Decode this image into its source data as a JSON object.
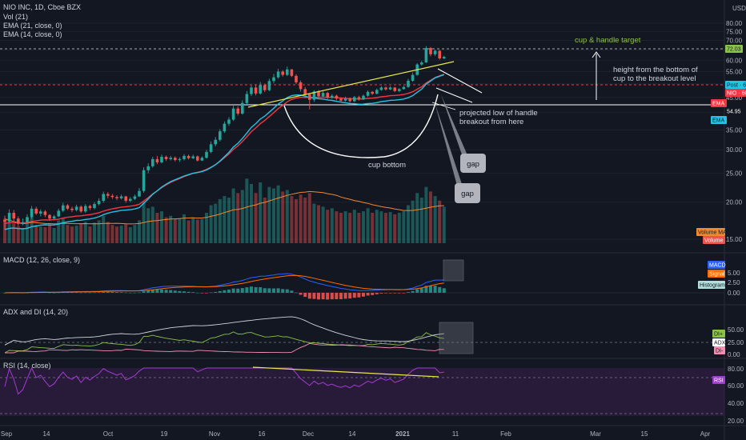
{
  "header": {
    "symbol_line": "NIO INC, 1D, Cboe BZX",
    "vol_label": "Vol (21)",
    "ema21_label": "EMA (21, close, 0)",
    "ema14_label": "EMA (14, close, 0)",
    "currency": "USD"
  },
  "colors": {
    "background": "#131722",
    "up": "#26a69a",
    "down": "#ef5350",
    "ema21": "#f23645",
    "ema14": "#22c4e6",
    "trend": "#e8e84a",
    "volume_ma": "#f0892f",
    "macd": "#2962ff",
    "signal": "#ff6d00",
    "adx": "#ffffff",
    "rsi": "#a33bd1"
  },
  "price_axis": {
    "ticks": [
      "80.00",
      "75.00",
      "70.00",
      "65.00",
      "60.00",
      "55.00",
      "50.00",
      "45.00",
      "40.00",
      "35.00",
      "30.00",
      "25.00",
      "20.00",
      "15.00"
    ]
  },
  "tags": {
    "target": "72.03",
    "post": "Post · 61.03",
    "nio": "NIO · 60.87",
    "ema21": "EMA",
    "breakout": "54.95",
    "ema14": "EMA",
    "volume_ma": "Volume MA",
    "volume": "Volume",
    "macd": "MACD",
    "signal": "Signal",
    "histogram": "Histogram",
    "di_plus": "DI+",
    "adx": "ADX",
    "di_minus": "DI-",
    "rsi": "RSI"
  },
  "annotations": {
    "target": "cup & handle target",
    "height_line1": "height from the bottom of",
    "height_line2": "cup to the breakout level",
    "projected_line1": "projected low of handle",
    "projected_line2": "breakout from here",
    "cup_bottom": "cup bottom",
    "gap1": "gap",
    "gap2": "gap"
  },
  "macd_panel": {
    "title": "MACD (12, 26, close, 9)",
    "ticks": [
      "5.00",
      "2.50",
      "0.00"
    ]
  },
  "adx_panel": {
    "title": "ADX and DI (14, 20)",
    "ticks": [
      "50.00",
      "25.00",
      "0.00"
    ]
  },
  "rsi_panel": {
    "title": "RSI (14, close)",
    "ticks": [
      "80.00",
      "60.00",
      "40.00",
      "20.00"
    ]
  },
  "time_axis": [
    "Sep",
    "14",
    "Oct",
    "19",
    "Nov",
    "16",
    "Dec",
    "14",
    "2021",
    "11",
    "Feb",
    "Mar",
    "15",
    "Apr"
  ],
  "chart_data": {
    "type": "candlestick",
    "ylim": [
      13,
      82
    ],
    "x_labels": [
      "Sep",
      "14",
      "Oct",
      "19",
      "Nov",
      "16",
      "Dec",
      "14",
      "2021",
      "11",
      "Feb",
      "Mar",
      "15",
      "Apr"
    ],
    "series": [
      {
        "name": "Volume MA"
      },
      {
        "name": "Volume"
      },
      {
        "name": "MACD"
      },
      {
        "name": "Signal"
      },
      {
        "name": "Histogram"
      },
      {
        "name": "DI+"
      },
      {
        "name": "ADX"
      },
      {
        "name": "DI-"
      },
      {
        "name": "RSI"
      }
    ],
    "candles": [
      [
        17.4,
        17.2,
        16.2,
        18.0
      ],
      [
        17.2,
        18.4,
        17.0,
        18.9
      ],
      [
        18.4,
        17.6,
        17.3,
        18.8
      ],
      [
        17.6,
        16.9,
        16.6,
        17.9
      ],
      [
        16.9,
        17.1,
        16.7,
        17.6
      ],
      [
        17.1,
        17.8,
        16.9,
        18.2
      ],
      [
        17.8,
        19.0,
        17.6,
        19.4
      ],
      [
        19.0,
        18.3,
        18.1,
        19.3
      ],
      [
        18.3,
        18.6,
        17.9,
        18.9
      ],
      [
        18.6,
        18.1,
        17.8,
        18.8
      ],
      [
        18.1,
        17.6,
        17.3,
        18.2
      ],
      [
        17.6,
        17.9,
        17.4,
        18.1
      ],
      [
        17.9,
        18.7,
        17.8,
        19.0
      ],
      [
        18.7,
        19.5,
        18.5,
        19.9
      ],
      [
        19.5,
        19.0,
        18.8,
        19.7
      ],
      [
        19.0,
        18.8,
        18.5,
        19.3
      ],
      [
        18.8,
        19.3,
        18.6,
        19.6
      ],
      [
        19.3,
        18.6,
        18.4,
        19.5
      ],
      [
        18.6,
        19.4,
        18.4,
        19.7
      ],
      [
        19.4,
        19.1,
        18.8,
        19.6
      ],
      [
        19.1,
        19.7,
        18.9,
        20.0
      ],
      [
        19.7,
        20.2,
        19.5,
        20.6
      ],
      [
        20.2,
        21.3,
        19.9,
        21.7
      ],
      [
        21.3,
        21.0,
        20.6,
        21.6
      ],
      [
        21.0,
        20.8,
        20.5,
        21.3
      ],
      [
        20.8,
        20.6,
        20.3,
        21.1
      ],
      [
        20.6,
        20.9,
        20.4,
        21.2
      ],
      [
        20.9,
        20.2,
        19.9,
        21.0
      ],
      [
        20.2,
        20.5,
        20.0,
        20.8
      ],
      [
        20.5,
        20.9,
        20.3,
        21.2
      ],
      [
        20.9,
        21.8,
        20.8,
        22.3
      ],
      [
        21.8,
        25.6,
        21.5,
        26.2
      ],
      [
        25.6,
        26.4,
        25.0,
        27.0
      ],
      [
        26.4,
        27.9,
        26.1,
        28.4
      ],
      [
        27.9,
        27.2,
        26.8,
        28.6
      ],
      [
        27.2,
        28.4,
        27.0,
        28.9
      ],
      [
        28.4,
        27.9,
        27.5,
        28.7
      ],
      [
        27.9,
        28.2,
        27.6,
        28.6
      ],
      [
        28.2,
        27.7,
        27.4,
        28.5
      ],
      [
        27.7,
        27.9,
        27.3,
        28.3
      ],
      [
        27.9,
        28.6,
        27.6,
        29.0
      ],
      [
        28.6,
        28.1,
        27.8,
        28.9
      ],
      [
        28.1,
        28.5,
        27.9,
        28.9
      ],
      [
        28.5,
        27.6,
        27.4,
        28.7
      ],
      [
        27.6,
        28.2,
        27.5,
        28.5
      ],
      [
        28.2,
        29.5,
        28.0,
        30.0
      ],
      [
        29.5,
        31.3,
        29.2,
        32.0
      ],
      [
        31.3,
        32.4,
        30.8,
        33.1
      ],
      [
        32.4,
        34.6,
        32.0,
        35.2
      ],
      [
        34.6,
        36.7,
        34.2,
        37.4
      ],
      [
        36.7,
        37.9,
        36.1,
        38.6
      ],
      [
        37.9,
        41.3,
        37.5,
        42.2
      ],
      [
        41.3,
        39.7,
        39.1,
        42.0
      ],
      [
        39.7,
        43.1,
        39.4,
        44.0
      ],
      [
        43.1,
        46.2,
        42.5,
        47.3
      ],
      [
        46.2,
        48.6,
        45.5,
        49.4
      ],
      [
        48.6,
        46.4,
        45.7,
        49.8
      ],
      [
        46.4,
        49.5,
        46.0,
        50.7
      ],
      [
        49.5,
        47.6,
        46.9,
        50.1
      ],
      [
        47.6,
        51.1,
        47.2,
        52.0
      ],
      [
        51.1,
        52.6,
        50.3,
        54.0
      ],
      [
        52.6,
        55.0,
        52.0,
        56.2
      ],
      [
        55.0,
        53.6,
        52.9,
        55.6
      ],
      [
        53.6,
        55.9,
        53.1,
        57.2
      ],
      [
        55.9,
        53.2,
        52.7,
        56.1
      ],
      [
        53.2,
        50.6,
        49.9,
        53.9
      ],
      [
        50.6,
        48.0,
        47.1,
        51.3
      ],
      [
        48.0,
        46.1,
        44.7,
        48.8
      ],
      [
        46.1,
        44.2,
        41.0,
        46.4
      ],
      [
        44.2,
        47.1,
        43.5,
        47.6
      ],
      [
        47.1,
        45.4,
        44.8,
        47.7
      ],
      [
        45.4,
        46.6,
        45.1,
        47.2
      ],
      [
        46.6,
        44.9,
        44.4,
        47.0
      ],
      [
        44.9,
        45.6,
        44.5,
        46.2
      ],
      [
        45.6,
        44.6,
        44.1,
        46.0
      ],
      [
        44.6,
        43.9,
        43.3,
        45.1
      ],
      [
        43.9,
        44.7,
        43.6,
        45.3
      ],
      [
        44.7,
        43.7,
        43.2,
        45.0
      ],
      [
        43.7,
        45.1,
        43.4,
        45.5
      ],
      [
        45.1,
        44.3,
        43.9,
        45.6
      ],
      [
        44.3,
        45.6,
        44.1,
        46.0
      ],
      [
        45.6,
        47.0,
        45.2,
        47.5
      ],
      [
        47.0,
        46.3,
        45.9,
        47.3
      ],
      [
        46.3,
        47.7,
        46.1,
        48.2
      ],
      [
        47.7,
        48.6,
        47.4,
        49.1
      ],
      [
        48.6,
        47.9,
        47.5,
        49.0
      ],
      [
        47.9,
        48.6,
        47.6,
        49.1
      ],
      [
        48.6,
        47.3,
        46.9,
        48.8
      ],
      [
        47.3,
        48.0,
        46.9,
        48.4
      ],
      [
        48.0,
        48.8,
        47.8,
        49.2
      ],
      [
        48.8,
        51.2,
        48.5,
        52.0
      ],
      [
        51.2,
        53.6,
        50.8,
        54.6
      ],
      [
        53.6,
        58.1,
        53.2,
        58.7
      ],
      [
        58.1,
        59.0,
        57.5,
        59.7
      ],
      [
        59.0,
        66.0,
        58.8,
        67.0
      ],
      [
        66.0,
        62.9,
        61.8,
        66.5
      ],
      [
        62.9,
        64.6,
        62.0,
        65.2
      ],
      [
        64.6,
        60.9,
        60.3,
        65.0
      ],
      [
        60.9,
        61.6,
        60.5,
        62.2
      ]
    ],
    "volume_rel": [
      0.32,
      0.28,
      0.26,
      0.22,
      0.2,
      0.3,
      0.34,
      0.24,
      0.22,
      0.21,
      0.25,
      0.2,
      0.3,
      0.33,
      0.24,
      0.22,
      0.23,
      0.26,
      0.28,
      0.22,
      0.27,
      0.3,
      0.36,
      0.28,
      0.24,
      0.22,
      0.23,
      0.25,
      0.21,
      0.24,
      0.3,
      0.55,
      0.46,
      0.48,
      0.4,
      0.42,
      0.34,
      0.36,
      0.32,
      0.33,
      0.38,
      0.3,
      0.33,
      0.31,
      0.32,
      0.4,
      0.5,
      0.52,
      0.58,
      0.62,
      0.6,
      0.72,
      0.66,
      0.7,
      0.85,
      0.78,
      0.66,
      0.8,
      0.6,
      0.74,
      0.72,
      0.76,
      0.68,
      0.7,
      0.62,
      0.58,
      0.64,
      0.6,
      0.66,
      0.52,
      0.5,
      0.48,
      0.44,
      0.46,
      0.42,
      0.4,
      0.42,
      0.4,
      0.44,
      0.4,
      0.42,
      0.46,
      0.4,
      0.44,
      0.42,
      0.4,
      0.41,
      0.38,
      0.4,
      0.42,
      0.5,
      0.56,
      0.66,
      0.6,
      0.74,
      0.68,
      0.62,
      0.56,
      0.48
    ]
  }
}
